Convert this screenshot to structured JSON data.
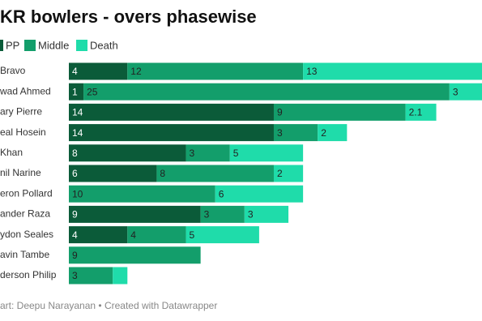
{
  "chart_data": {
    "type": "stacked-bar-horizontal",
    "title": "KR bowlers - overs phasewise",
    "footer": "art: Deepu Narayanan • Created with Datawrapper",
    "categories": [
      "Bravo",
      "wad Ahmed",
      "ary Pierre",
      "eal Hosein",
      "Khan",
      "nil Narine",
      "eron Pollard",
      "ander Raza",
      "ydon Seales",
      "avin Tambe",
      "derson Philip"
    ],
    "series": [
      {
        "name": "PP",
        "color": "#0b5b39",
        "values": [
          4,
          1,
          14,
          14,
          8,
          6,
          null,
          9,
          4,
          null,
          null
        ]
      },
      {
        "name": "Middle",
        "color": "#139e6b",
        "values": [
          12,
          25,
          9,
          3,
          3,
          8,
          10,
          3,
          4,
          9,
          3
        ]
      },
      {
        "name": "Death",
        "color": "#1fdcaa",
        "values": [
          13,
          3,
          2.1,
          2,
          5,
          2,
          6,
          3,
          5,
          null,
          1
        ],
        "value_labels": [
          "13",
          "3",
          "2.1",
          "2",
          "5",
          "2",
          "6",
          "3",
          "5",
          null,
          null
        ]
      }
    ]
  }
}
